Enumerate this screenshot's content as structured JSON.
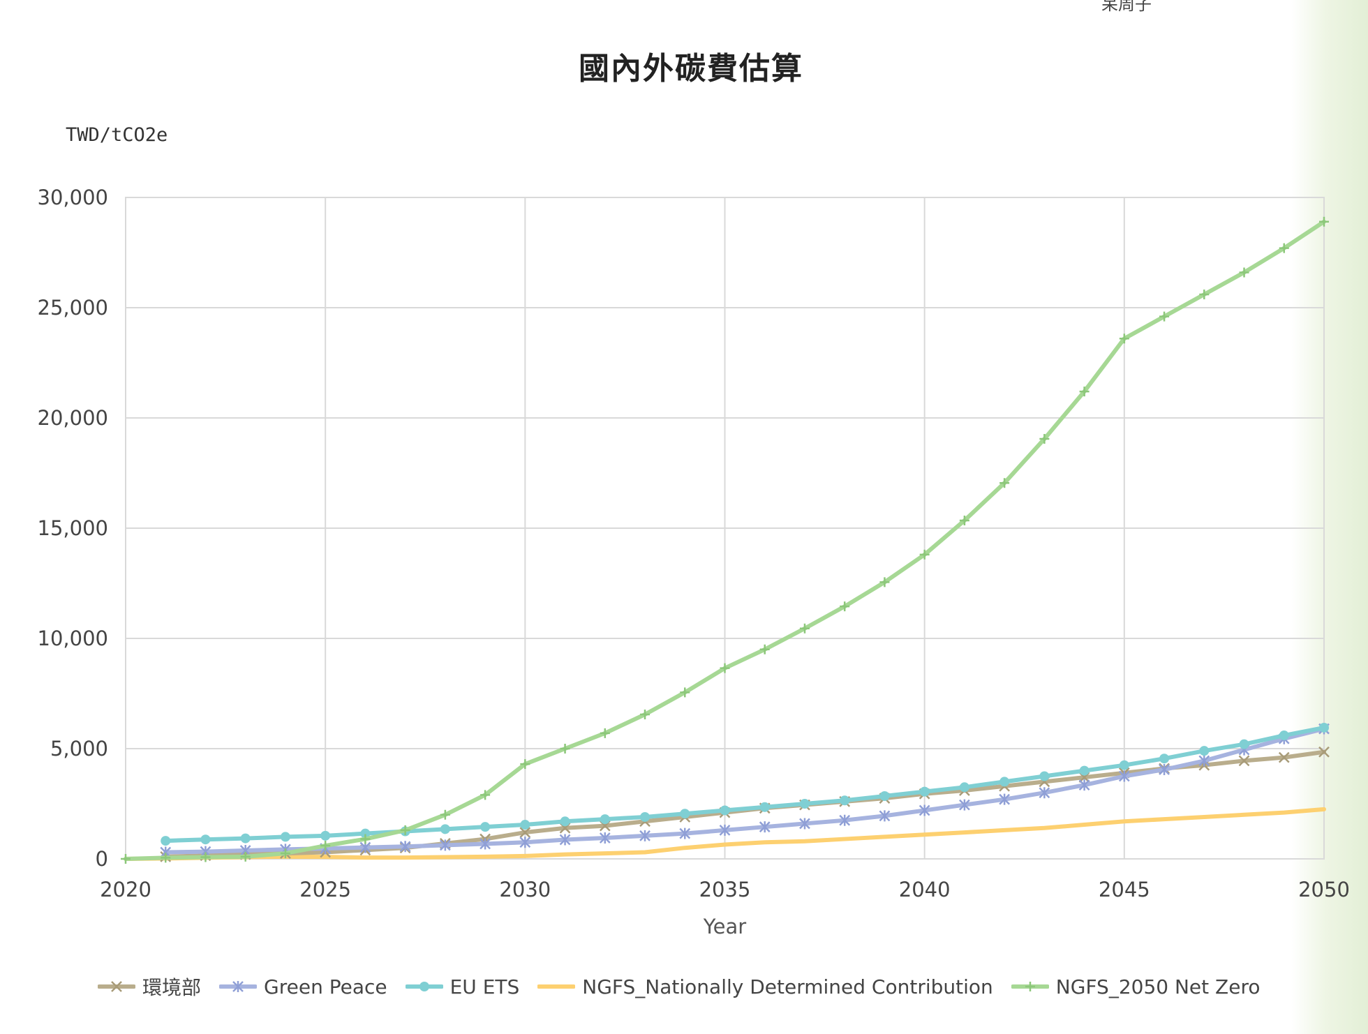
{
  "page": {
    "corner_text": "呆周子"
  },
  "chart_data": {
    "type": "line",
    "title": "國內外碳費估算",
    "ylabel": "TWD/tCO2e",
    "xlabel": "Year",
    "x_ticks": [
      "2020",
      "2025",
      "2030",
      "2035",
      "2040",
      "2045",
      "2050"
    ],
    "y_ticks": [
      "0",
      "5,000",
      "10,000",
      "15,000",
      "20,000",
      "25,000",
      "30,000"
    ],
    "xlim": [
      2020,
      2050
    ],
    "ylim": [
      0,
      30000
    ],
    "grid": true,
    "legend_position": "bottom",
    "series": [
      {
        "name": "環境部",
        "color": "#b9ad8c",
        "marker": "x",
        "x": [
          2021,
          2022,
          2023,
          2024,
          2025,
          2026,
          2027,
          2028,
          2029,
          2030,
          2031,
          2032,
          2033,
          2034,
          2035,
          2036,
          2037,
          2038,
          2039,
          2040,
          2041,
          2042,
          2043,
          2044,
          2045,
          2046,
          2047,
          2048,
          2049,
          2050
        ],
        "y": [
          100,
          150,
          200,
          250,
          300,
          400,
          500,
          700,
          900,
          1200,
          1400,
          1500,
          1700,
          1900,
          2100,
          2300,
          2450,
          2600,
          2750,
          2950,
          3100,
          3300,
          3500,
          3700,
          3900,
          4100,
          4250,
          4450,
          4600,
          4850
        ]
      },
      {
        "name": "Green Peace",
        "color": "#a6b3df",
        "marker": "star",
        "x": [
          2021,
          2022,
          2023,
          2024,
          2025,
          2026,
          2027,
          2028,
          2029,
          2030,
          2031,
          2032,
          2033,
          2034,
          2035,
          2036,
          2037,
          2038,
          2039,
          2040,
          2041,
          2042,
          2043,
          2044,
          2045,
          2046,
          2047,
          2048,
          2049,
          2050
        ],
        "y": [
          300,
          330,
          380,
          430,
          470,
          520,
          560,
          620,
          680,
          750,
          870,
          950,
          1050,
          1150,
          1300,
          1450,
          1600,
          1750,
          1950,
          2200,
          2450,
          2700,
          3000,
          3350,
          3750,
          4050,
          4450,
          4950,
          5450,
          5900
        ]
      },
      {
        "name": "EU ETS",
        "color": "#7fcfd3",
        "marker": "dot",
        "x": [
          2021,
          2022,
          2023,
          2024,
          2025,
          2026,
          2027,
          2028,
          2029,
          2030,
          2031,
          2032,
          2033,
          2034,
          2035,
          2036,
          2037,
          2038,
          2039,
          2040,
          2041,
          2042,
          2043,
          2044,
          2045,
          2046,
          2047,
          2048,
          2049,
          2050
        ],
        "y": [
          820,
          880,
          930,
          1000,
          1050,
          1150,
          1250,
          1350,
          1450,
          1550,
          1700,
          1800,
          1900,
          2050,
          2200,
          2350,
          2500,
          2650,
          2850,
          3050,
          3250,
          3500,
          3750,
          4000,
          4250,
          4550,
          4900,
          5200,
          5600,
          5950
        ]
      },
      {
        "name": "NGFS_Nationally Determined Contribution",
        "color": "#fdd070",
        "marker": "none",
        "x": [
          2020,
          2021,
          2022,
          2023,
          2024,
          2025,
          2026,
          2027,
          2028,
          2029,
          2030,
          2031,
          2032,
          2033,
          2034,
          2035,
          2036,
          2037,
          2038,
          2039,
          2040,
          2041,
          2042,
          2043,
          2044,
          2045,
          2046,
          2047,
          2048,
          2049,
          2050
        ],
        "y": [
          0,
          20,
          50,
          80,
          100,
          90,
          60,
          60,
          80,
          100,
          130,
          200,
          250,
          300,
          500,
          650,
          750,
          800,
          900,
          1000,
          1100,
          1200,
          1300,
          1400,
          1550,
          1700,
          1800,
          1900,
          2000,
          2100,
          2250
        ]
      },
      {
        "name": "NGFS_2050 Net Zero",
        "color": "#a6d894",
        "marker": "plus",
        "x": [
          2020,
          2021,
          2022,
          2023,
          2024,
          2025,
          2026,
          2027,
          2028,
          2029,
          2030,
          2031,
          2032,
          2033,
          2034,
          2035,
          2036,
          2037,
          2038,
          2039,
          2040,
          2041,
          2042,
          2043,
          2044,
          2045,
          2046,
          2047,
          2048,
          2049,
          2050
        ],
        "y": [
          0,
          50,
          80,
          100,
          250,
          600,
          900,
          1300,
          2000,
          2900,
          4300,
          5000,
          5700,
          6550,
          7550,
          8650,
          9500,
          10450,
          11450,
          12550,
          13800,
          15350,
          17050,
          19050,
          21200,
          23600,
          24600,
          25600,
          26600,
          27700,
          28900
        ]
      }
    ]
  }
}
